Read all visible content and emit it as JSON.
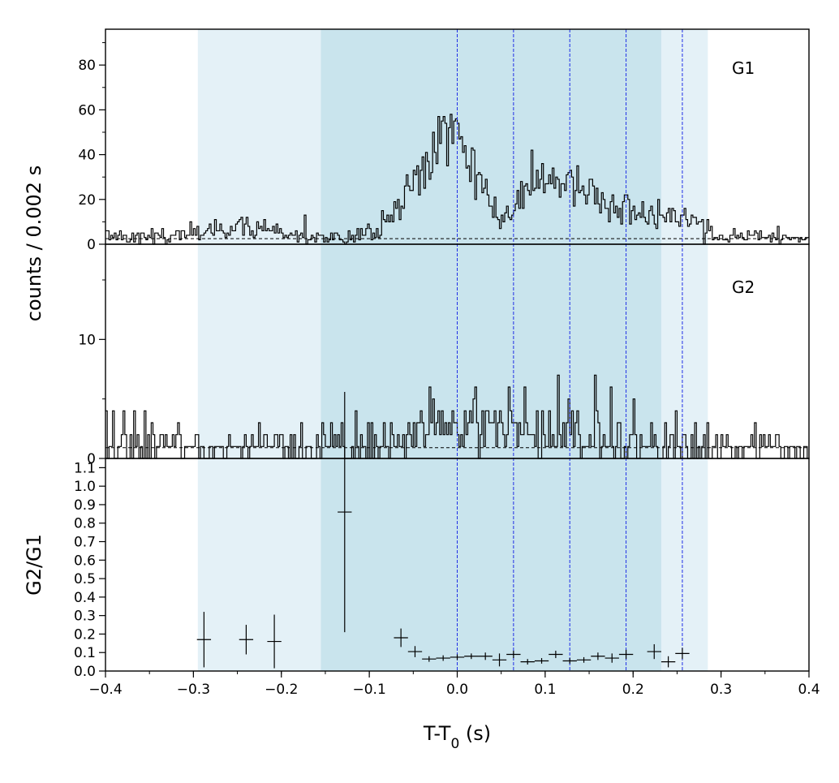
{
  "chart_data": {
    "type": "line",
    "x_label_parts": {
      "main": "T-T",
      "sub": "0",
      "tail": " (s)"
    },
    "xlim": [
      -0.4,
      0.4
    ],
    "x_ticks": [
      -0.4,
      -0.3,
      -0.2,
      -0.1,
      0.0,
      0.1,
      0.2,
      0.3,
      0.4
    ],
    "x_tick_labels": [
      "−0.4",
      "−0.3",
      "−0.2",
      "−0.1",
      "0.0",
      "0.1",
      "0.2",
      "0.3",
      "0.4"
    ],
    "shaded_regions": [
      {
        "x": [
          -0.295,
          0.285
        ],
        "color": "#e4f1f7"
      },
      {
        "x": [
          -0.155,
          0.232
        ],
        "color": "#c9e4ed"
      }
    ],
    "vertical_lines": {
      "x": [
        0.0,
        0.064,
        0.128,
        0.192,
        0.256
      ],
      "color": "#1f2ee6"
    },
    "panels": [
      {
        "label": "G1",
        "ylabel": "counts /  0.002 s",
        "ylim": [
          0,
          96
        ],
        "y_ticks": [
          0,
          20,
          40,
          60,
          80
        ],
        "y_tick_labels": [
          "0",
          "20",
          "40",
          "60",
          "80"
        ],
        "y_minor_ticks": [
          10,
          30,
          50,
          70,
          90
        ],
        "background_level": 2.5,
        "anchors": [
          [
            -0.4,
            3
          ],
          [
            -0.3,
            4
          ],
          [
            -0.24,
            9
          ],
          [
            -0.2,
            4
          ],
          [
            -0.155,
            4
          ],
          [
            -0.12,
            4
          ],
          [
            -0.09,
            6
          ],
          [
            -0.07,
            15
          ],
          [
            -0.05,
            28
          ],
          [
            -0.03,
            42
          ],
          [
            -0.015,
            52
          ],
          [
            0.0,
            45
          ],
          [
            0.01,
            35
          ],
          [
            0.02,
            30
          ],
          [
            0.03,
            25
          ],
          [
            0.045,
            15
          ],
          [
            0.06,
            12
          ],
          [
            0.075,
            20
          ],
          [
            0.09,
            28
          ],
          [
            0.105,
            30
          ],
          [
            0.12,
            28
          ],
          [
            0.14,
            24
          ],
          [
            0.16,
            20
          ],
          [
            0.19,
            16
          ],
          [
            0.22,
            13
          ],
          [
            0.25,
            12
          ],
          [
            0.27,
            10
          ],
          [
            0.285,
            4
          ],
          [
            0.3,
            3
          ],
          [
            0.4,
            3
          ]
        ]
      },
      {
        "label": "G2",
        "ylim": [
          0,
          18
        ],
        "y_ticks": [
          0,
          10
        ],
        "y_tick_labels": [
          "0",
          "10"
        ],
        "y_minor_ticks": [
          5,
          15
        ],
        "background_level": 0.9,
        "anchors": [
          [
            -0.4,
            0.9
          ],
          [
            -0.3,
            1.0
          ],
          [
            -0.155,
            1.0
          ],
          [
            -0.1,
            1.2
          ],
          [
            -0.07,
            2.0
          ],
          [
            -0.04,
            2.6
          ],
          [
            -0.01,
            2.8
          ],
          [
            0.0,
            3.0
          ],
          [
            0.03,
            2.6
          ],
          [
            0.06,
            2.3
          ],
          [
            0.1,
            2.2
          ],
          [
            0.15,
            1.9
          ],
          [
            0.2,
            1.6
          ],
          [
            0.23,
            1.3
          ],
          [
            0.285,
            1.0
          ],
          [
            0.3,
            0.9
          ],
          [
            0.4,
            0.9
          ]
        ]
      },
      {
        "ylabel": "G2/G1",
        "ylim": [
          0,
          1.15
        ],
        "y_ticks": [
          0,
          0.1,
          0.2,
          0.3,
          0.4,
          0.5,
          0.6,
          0.7,
          0.8,
          0.9,
          1.0,
          1.1
        ],
        "y_tick_labels": [
          "0.0",
          "0.1",
          "0.2",
          "0.3",
          "0.4",
          "0.5",
          "0.6",
          "0.7",
          "0.8",
          "0.9",
          "1.0",
          "1.1"
        ],
        "ratio_points": [
          {
            "x": -0.288,
            "y": 0.17,
            "xerr": 0.008,
            "yerr": 0.15
          },
          {
            "x": -0.24,
            "y": 0.17,
            "xerr": 0.008,
            "yerr": 0.08
          },
          {
            "x": -0.208,
            "y": 0.16,
            "xerr": 0.008,
            "yerr": 0.145
          },
          {
            "x": -0.128,
            "y": 0.86,
            "xerr": 0.008,
            "yerr": 0.65
          },
          {
            "x": -0.064,
            "y": 0.18,
            "xerr": 0.008,
            "yerr": 0.05
          },
          {
            "x": -0.048,
            "y": 0.105,
            "xerr": 0.008,
            "yerr": 0.03
          },
          {
            "x": -0.032,
            "y": 0.065,
            "xerr": 0.008,
            "yerr": 0.015
          },
          {
            "x": -0.016,
            "y": 0.07,
            "xerr": 0.008,
            "yerr": 0.015
          },
          {
            "x": 0.0,
            "y": 0.075,
            "xerr": 0.008,
            "yerr": 0.015
          },
          {
            "x": 0.016,
            "y": 0.08,
            "xerr": 0.008,
            "yerr": 0.015
          },
          {
            "x": 0.032,
            "y": 0.08,
            "xerr": 0.008,
            "yerr": 0.02
          },
          {
            "x": 0.048,
            "y": 0.06,
            "xerr": 0.008,
            "yerr": 0.035
          },
          {
            "x": 0.064,
            "y": 0.09,
            "xerr": 0.008,
            "yerr": 0.02
          },
          {
            "x": 0.08,
            "y": 0.05,
            "xerr": 0.008,
            "yerr": 0.015
          },
          {
            "x": 0.096,
            "y": 0.055,
            "xerr": 0.008,
            "yerr": 0.015
          },
          {
            "x": 0.112,
            "y": 0.09,
            "xerr": 0.008,
            "yerr": 0.02
          },
          {
            "x": 0.128,
            "y": 0.055,
            "xerr": 0.008,
            "yerr": 0.015
          },
          {
            "x": 0.144,
            "y": 0.06,
            "xerr": 0.008,
            "yerr": 0.015
          },
          {
            "x": 0.16,
            "y": 0.08,
            "xerr": 0.008,
            "yerr": 0.02
          },
          {
            "x": 0.176,
            "y": 0.07,
            "xerr": 0.008,
            "yerr": 0.025
          },
          {
            "x": 0.192,
            "y": 0.09,
            "xerr": 0.008,
            "yerr": 0.025
          },
          {
            "x": 0.224,
            "y": 0.105,
            "xerr": 0.008,
            "yerr": 0.04
          },
          {
            "x": 0.24,
            "y": 0.05,
            "xerr": 0.008,
            "yerr": 0.03
          },
          {
            "x": 0.256,
            "y": 0.095,
            "xerr": 0.008,
            "yerr": 0.03
          }
        ]
      }
    ],
    "line_color": "#000000"
  }
}
